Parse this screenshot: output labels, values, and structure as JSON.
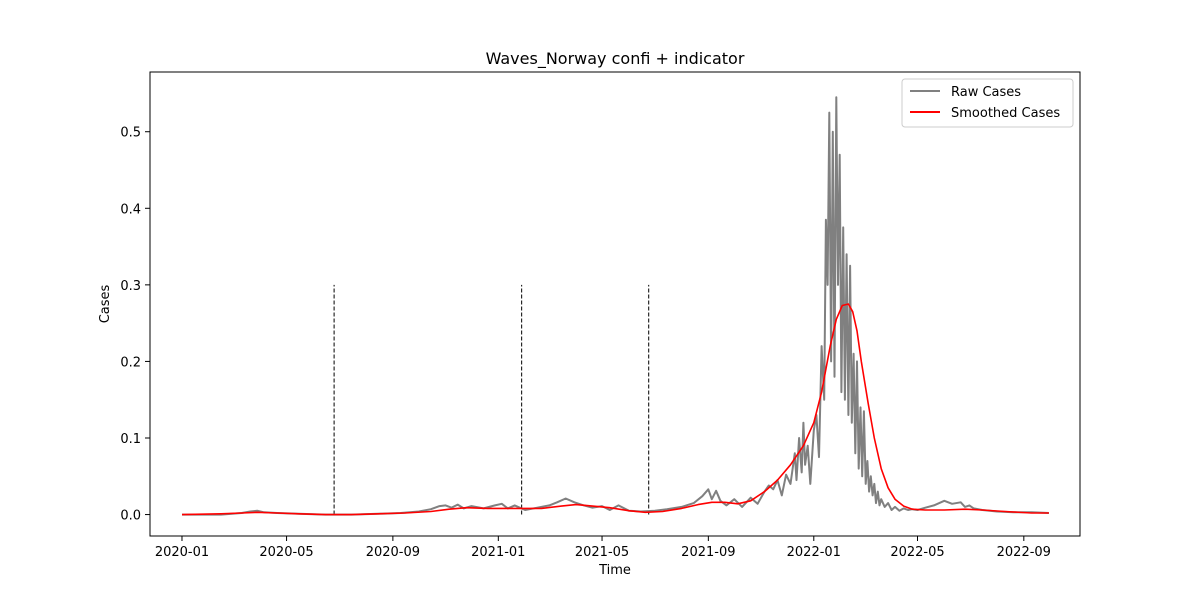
{
  "chart_data": {
    "type": "line",
    "title": "Waves_Norway confi + indicator",
    "xlabel": "Time",
    "ylabel": "Cases",
    "x_range": [
      "2019-11-25",
      "2022-11-05"
    ],
    "ylim": [
      -0.028,
      0.578
    ],
    "x_ticks": [
      "2020-01",
      "2020-05",
      "2020-09",
      "2021-01",
      "2021-05",
      "2021-09",
      "2022-01",
      "2022-05",
      "2022-09"
    ],
    "y_ticks": [
      0.0,
      0.1,
      0.2,
      0.3,
      0.4,
      0.5
    ],
    "y_tick_labels": [
      "0.0",
      "0.1",
      "0.2",
      "0.3",
      "0.4",
      "0.5"
    ],
    "grid": false,
    "legend_position": "top-right",
    "indicator_lines": {
      "style": "dashed",
      "color": "#000000",
      "ymin": 0.0,
      "ymax": 0.3,
      "dates": [
        "2020-06-25",
        "2021-01-28",
        "2021-06-24"
      ]
    },
    "series": [
      {
        "name": "Raw Cases",
        "color": "#808080",
        "x": [
          "2020-01-01",
          "2020-02-15",
          "2020-03-10",
          "2020-03-20",
          "2020-03-28",
          "2020-04-05",
          "2020-04-20",
          "2020-05-15",
          "2020-06-15",
          "2020-07-15",
          "2020-08-15",
          "2020-09-10",
          "2020-10-01",
          "2020-10-15",
          "2020-10-25",
          "2020-11-01",
          "2020-11-08",
          "2020-11-15",
          "2020-11-22",
          "2020-12-01",
          "2020-12-15",
          "2020-12-28",
          "2021-01-05",
          "2021-01-12",
          "2021-01-20",
          "2021-02-01",
          "2021-02-15",
          "2021-03-01",
          "2021-03-10",
          "2021-03-20",
          "2021-03-30",
          "2021-04-10",
          "2021-04-20",
          "2021-05-01",
          "2021-05-10",
          "2021-05-20",
          "2021-06-01",
          "2021-06-15",
          "2021-07-01",
          "2021-07-15",
          "2021-08-01",
          "2021-08-15",
          "2021-08-25",
          "2021-09-01",
          "2021-09-05",
          "2021-09-10",
          "2021-09-15",
          "2021-09-22",
          "2021-10-01",
          "2021-10-10",
          "2021-10-20",
          "2021-10-28",
          "2021-11-05",
          "2021-11-10",
          "2021-11-15",
          "2021-11-20",
          "2021-11-25",
          "2021-11-30",
          "2021-12-05",
          "2021-12-10",
          "2021-12-12",
          "2021-12-15",
          "2021-12-18",
          "2021-12-20",
          "2021-12-22",
          "2021-12-25",
          "2021-12-28",
          "2022-01-01",
          "2022-01-04",
          "2022-01-07",
          "2022-01-10",
          "2022-01-13",
          "2022-01-15",
          "2022-01-17",
          "2022-01-19",
          "2022-01-21",
          "2022-01-23",
          "2022-01-25",
          "2022-01-27",
          "2022-01-29",
          "2022-01-31",
          "2022-02-02",
          "2022-02-04",
          "2022-02-06",
          "2022-02-08",
          "2022-02-10",
          "2022-02-12",
          "2022-02-14",
          "2022-02-16",
          "2022-02-18",
          "2022-02-20",
          "2022-02-22",
          "2022-02-24",
          "2022-02-26",
          "2022-02-28",
          "2022-03-02",
          "2022-03-04",
          "2022-03-06",
          "2022-03-08",
          "2022-03-10",
          "2022-03-12",
          "2022-03-14",
          "2022-03-16",
          "2022-03-18",
          "2022-03-20",
          "2022-03-24",
          "2022-03-28",
          "2022-04-01",
          "2022-04-05",
          "2022-04-10",
          "2022-04-15",
          "2022-04-20",
          "2022-04-25",
          "2022-05-01",
          "2022-05-10",
          "2022-05-20",
          "2022-06-01",
          "2022-06-10",
          "2022-06-20",
          "2022-06-25",
          "2022-06-30",
          "2022-07-05",
          "2022-07-15",
          "2022-08-01",
          "2022-08-20",
          "2022-09-10",
          "2022-09-30"
        ],
        "values": [
          0.0,
          0.0,
          0.002,
          0.004,
          0.005,
          0.003,
          0.002,
          0.001,
          0.0,
          0.0,
          0.001,
          0.002,
          0.004,
          0.007,
          0.011,
          0.012,
          0.009,
          0.013,
          0.008,
          0.011,
          0.008,
          0.012,
          0.014,
          0.008,
          0.012,
          0.006,
          0.009,
          0.012,
          0.016,
          0.021,
          0.016,
          0.012,
          0.009,
          0.011,
          0.006,
          0.012,
          0.005,
          0.004,
          0.005,
          0.007,
          0.01,
          0.015,
          0.024,
          0.033,
          0.02,
          0.031,
          0.018,
          0.012,
          0.02,
          0.01,
          0.022,
          0.014,
          0.03,
          0.038,
          0.033,
          0.045,
          0.025,
          0.052,
          0.04,
          0.08,
          0.045,
          0.1,
          0.055,
          0.12,
          0.065,
          0.09,
          0.04,
          0.11,
          0.13,
          0.075,
          0.22,
          0.15,
          0.385,
          0.3,
          0.525,
          0.2,
          0.5,
          0.18,
          0.545,
          0.3,
          0.47,
          0.16,
          0.375,
          0.15,
          0.34,
          0.13,
          0.325,
          0.12,
          0.21,
          0.08,
          0.2,
          0.06,
          0.14,
          0.05,
          0.135,
          0.04,
          0.07,
          0.03,
          0.05,
          0.025,
          0.04,
          0.015,
          0.03,
          0.012,
          0.02,
          0.01,
          0.015,
          0.006,
          0.01,
          0.005,
          0.008,
          0.006,
          0.007,
          0.006,
          0.009,
          0.012,
          0.018,
          0.014,
          0.016,
          0.01,
          0.012,
          0.008,
          0.006,
          0.004,
          0.003,
          0.003,
          0.002
        ]
      },
      {
        "name": "Smoothed Cases",
        "color": "#ff0000",
        "x": [
          "2020-01-01",
          "2020-02-15",
          "2020-03-10",
          "2020-03-28",
          "2020-04-20",
          "2020-05-15",
          "2020-06-15",
          "2020-07-15",
          "2020-08-15",
          "2020-09-15",
          "2020-10-15",
          "2020-11-05",
          "2020-11-25",
          "2020-12-20",
          "2021-01-10",
          "2021-02-01",
          "2021-02-20",
          "2021-03-15",
          "2021-04-01",
          "2021-04-20",
          "2021-05-10",
          "2021-06-01",
          "2021-06-20",
          "2021-07-10",
          "2021-08-01",
          "2021-08-20",
          "2021-09-05",
          "2021-09-20",
          "2021-10-05",
          "2021-10-20",
          "2021-11-05",
          "2021-11-20",
          "2021-12-05",
          "2021-12-20",
          "2022-01-01",
          "2022-01-10",
          "2022-01-20",
          "2022-01-27",
          "2022-02-03",
          "2022-02-10",
          "2022-02-15",
          "2022-02-20",
          "2022-02-25",
          "2022-03-05",
          "2022-03-12",
          "2022-03-20",
          "2022-03-28",
          "2022-04-05",
          "2022-04-15",
          "2022-04-25",
          "2022-05-10",
          "2022-06-01",
          "2022-06-25",
          "2022-07-15",
          "2022-08-10",
          "2022-09-10",
          "2022-09-30"
        ],
        "values": [
          0.0,
          0.001,
          0.002,
          0.003,
          0.002,
          0.001,
          0.0,
          0.0,
          0.001,
          0.002,
          0.004,
          0.007,
          0.009,
          0.008,
          0.008,
          0.008,
          0.008,
          0.011,
          0.013,
          0.011,
          0.009,
          0.005,
          0.003,
          0.004,
          0.008,
          0.013,
          0.016,
          0.016,
          0.014,
          0.018,
          0.03,
          0.045,
          0.065,
          0.09,
          0.12,
          0.16,
          0.22,
          0.255,
          0.273,
          0.275,
          0.265,
          0.24,
          0.2,
          0.145,
          0.1,
          0.06,
          0.035,
          0.02,
          0.011,
          0.007,
          0.006,
          0.006,
          0.007,
          0.006,
          0.004,
          0.002,
          0.002
        ]
      }
    ]
  }
}
